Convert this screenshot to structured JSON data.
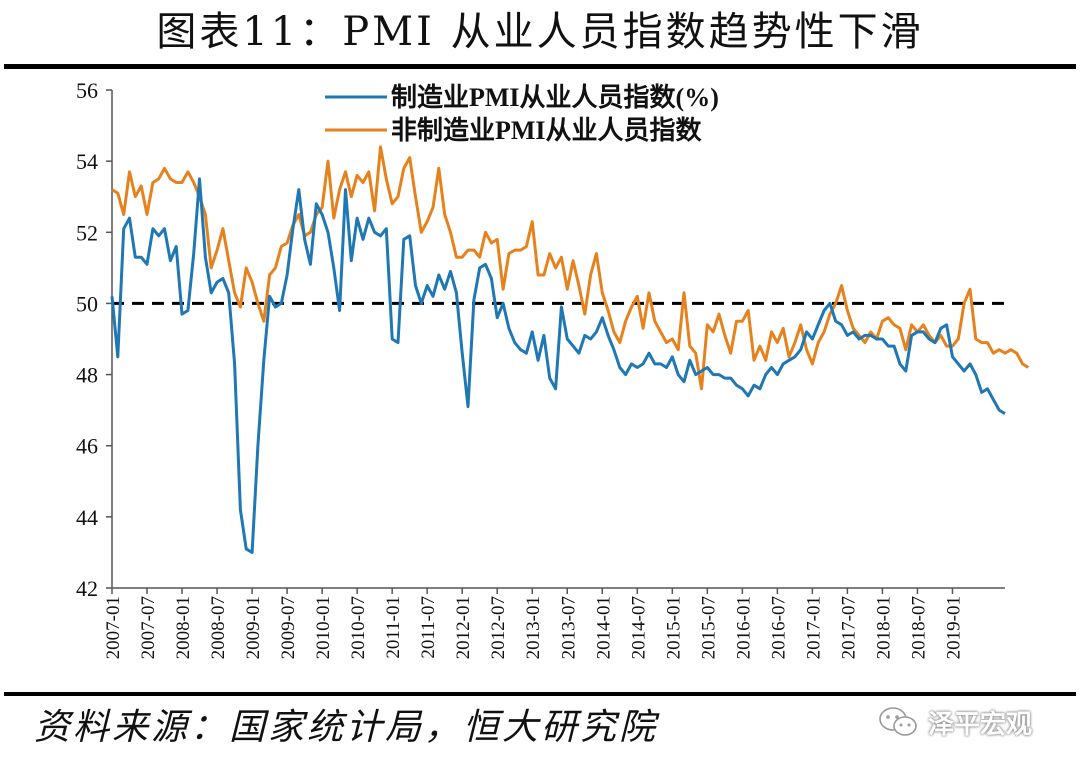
{
  "title": "图表11：PMI 从业人员指数趋势性下滑",
  "source": "资料来源：国家统计局，恒大研究院",
  "watermark": {
    "text": "泽平宏观",
    "icon": "wechat-icon"
  },
  "chart_data": {
    "type": "line",
    "ylim": [
      42,
      56
    ],
    "yticks": [
      42,
      44,
      46,
      48,
      50,
      52,
      54,
      56
    ],
    "reference_line": 50,
    "xtick_labels": [
      "2007-01",
      "2007-07",
      "2008-01",
      "2008-07",
      "2009-01",
      "2009-07",
      "2010-01",
      "2010-07",
      "2011-01",
      "2011-07",
      "2012-01",
      "2012-07",
      "2013-01",
      "2013-07",
      "2014-01",
      "2014-07",
      "2015-01",
      "2015-07",
      "2016-01",
      "2016-07",
      "2017-01",
      "2017-07",
      "2018-01",
      "2018-07",
      "2019-01"
    ],
    "legend_position": "top-center",
    "colors": {
      "manufacturing": "#1f77b4",
      "non_manufacturing": "#e6821e",
      "reference": "#000000"
    },
    "series": [
      {
        "name": "制造业PMI从业人员指数(%)",
        "values": [
          50.2,
          48.5,
          52.1,
          52.4,
          51.3,
          51.3,
          51.1,
          52.1,
          51.9,
          52.1,
          51.2,
          51.6,
          49.7,
          49.8,
          51.4,
          53.5,
          51.3,
          50.3,
          50.6,
          50.7,
          50.3,
          48.3,
          44.2,
          43.1,
          43.0,
          46.0,
          48.4,
          50.2,
          49.9,
          50.0,
          50.8,
          52.1,
          53.2,
          51.8,
          51.1,
          52.8,
          52.5,
          52.0,
          51.0,
          49.8,
          53.2,
          51.2,
          52.4,
          51.8,
          52.4,
          52.0,
          51.9,
          52.1,
          49.0,
          48.9,
          51.8,
          51.9,
          50.5,
          50.0,
          50.5,
          50.2,
          50.8,
          50.4,
          50.9,
          50.3,
          48.6,
          47.1,
          50.1,
          51.0,
          51.1,
          50.7,
          49.6,
          50.0,
          49.3,
          48.9,
          48.7,
          48.6,
          49.2,
          48.4,
          49.1,
          47.9,
          47.6,
          49.9,
          49.0,
          48.8,
          48.6,
          49.1,
          49.0,
          49.2,
          49.6,
          49.1,
          48.7,
          48.2,
          48.0,
          48.3,
          48.2,
          48.3,
          48.6,
          48.3,
          48.3,
          48.2,
          48.5,
          48.0,
          47.8,
          48.4,
          48.0,
          48.1,
          48.2,
          48.0,
          48.0,
          47.9,
          47.9,
          47.7,
          47.6,
          47.4,
          47.7,
          47.6,
          48.0,
          48.2,
          48.0,
          48.3,
          48.4,
          48.5,
          48.7,
          49.2,
          49.0,
          49.4,
          49.8,
          50.0,
          49.5,
          49.4,
          49.1,
          49.2,
          49.0,
          49.1,
          49.1,
          49.0,
          49.0,
          48.8,
          48.8,
          48.3,
          48.1,
          49.1,
          49.2,
          49.2,
          49.0,
          48.9,
          49.3,
          49.4,
          48.5,
          48.3,
          48.1,
          48.3,
          48.0,
          47.5,
          47.6,
          47.3,
          47.0,
          46.9
        ]
      },
      {
        "name": "非制造业PMI从业人员指数",
        "values": [
          53.2,
          53.1,
          52.5,
          53.7,
          53.0,
          53.3,
          52.5,
          53.4,
          53.5,
          53.8,
          53.5,
          53.4,
          53.4,
          53.7,
          53.4,
          53.0,
          52.5,
          51.0,
          51.5,
          52.1,
          51.2,
          50.3,
          49.9,
          51.0,
          50.6,
          50.0,
          49.5,
          50.8,
          51.0,
          51.6,
          51.7,
          52.2,
          52.5,
          51.9,
          52.0,
          52.5,
          52.7,
          54.0,
          52.4,
          53.2,
          53.7,
          53.0,
          53.6,
          53.4,
          53.7,
          52.6,
          54.4,
          53.5,
          52.8,
          53.0,
          53.8,
          54.1,
          53.0,
          52.0,
          52.3,
          52.7,
          53.8,
          52.5,
          52.0,
          51.3,
          51.3,
          51.5,
          51.5,
          51.3,
          52.0,
          51.7,
          51.8,
          50.4,
          51.4,
          51.5,
          51.5,
          51.6,
          52.3,
          50.8,
          50.8,
          51.4,
          51.0,
          51.3,
          50.4,
          51.2,
          50.5,
          49.7,
          50.8,
          51.4,
          50.3,
          49.8,
          49.2,
          48.9,
          49.5,
          49.9,
          50.2,
          49.3,
          50.3,
          49.5,
          49.2,
          48.9,
          49.0,
          48.7,
          50.3,
          48.8,
          48.6,
          47.6,
          49.4,
          49.2,
          49.7,
          49.1,
          48.6,
          49.5,
          49.5,
          49.8,
          48.4,
          48.8,
          48.4,
          49.2,
          48.9,
          49.3,
          48.5,
          48.9,
          49.4,
          48.7,
          48.3,
          48.9,
          49.2,
          49.7,
          50.0,
          50.5,
          49.8,
          49.3,
          49.1,
          48.9,
          49.2,
          49.0,
          49.5,
          49.6,
          49.4,
          49.3,
          48.7,
          49.4,
          49.2,
          49.4,
          49.1,
          48.9,
          49.1,
          48.8,
          48.8,
          49.0,
          50.0,
          50.4,
          49.0,
          48.9,
          48.9,
          48.6,
          48.7,
          48.6,
          48.7,
          48.6,
          48.3,
          48.2
        ]
      }
    ]
  }
}
